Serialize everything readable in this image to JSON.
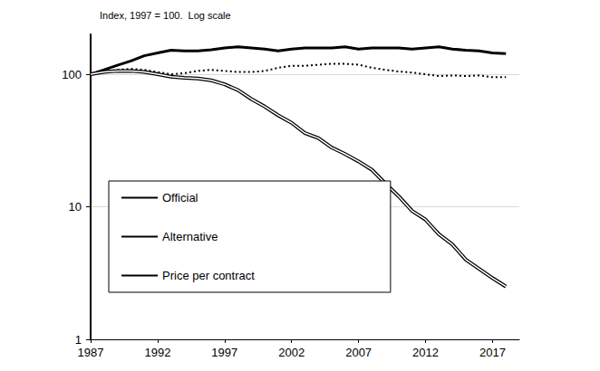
{
  "chart_data": {
    "type": "line",
    "ylabel": "Index, 1997 = 100.  Log scale",
    "log": "y",
    "grid": true,
    "legend": "left",
    "x": [
      1987,
      1988,
      1989,
      1990,
      1991,
      1992,
      1993,
      1994,
      1995,
      1996,
      1997,
      1998,
      1999,
      2000,
      2001,
      2002,
      2003,
      2004,
      2005,
      2006,
      2007,
      2008,
      2009,
      2010,
      2011,
      2012,
      2013,
      2014,
      2015,
      2016,
      2017,
      2018
    ],
    "xlim": [
      1987,
      2019
    ],
    "xticks": [
      1987,
      1992,
      1997,
      2002,
      2007,
      2012,
      2017
    ],
    "ylim": [
      1,
      200
    ],
    "yticks": [
      1,
      10,
      100
    ],
    "series": [
      {
        "name": "Official",
        "color": "#000000",
        "line_style": "solid",
        "values": [
          100,
          108,
          117,
          126,
          138,
          145,
          152,
          150,
          150,
          153,
          158,
          161,
          158,
          155,
          150,
          155,
          158,
          158,
          158,
          161,
          155,
          158,
          158,
          158,
          155,
          158,
          161,
          155,
          152,
          150,
          145,
          143
        ]
      },
      {
        "name": "Alternative",
        "color": "#000000",
        "line_style": "double",
        "values": [
          100,
          104,
          106,
          106,
          104,
          100,
          96,
          94,
          93,
          90,
          84,
          76,
          65,
          57,
          49,
          43,
          36,
          33,
          28,
          25,
          22,
          19,
          15,
          12,
          9.3,
          8,
          6.2,
          5.2,
          4,
          3.4,
          2.9,
          2.5
        ]
      },
      {
        "name": "Price per contract",
        "color": "#000000",
        "line_style": "dotted",
        "values": [
          100,
          104,
          108,
          110,
          108,
          104,
          100,
          102,
          106,
          108,
          106,
          104,
          104,
          106,
          112,
          116,
          116,
          118,
          120,
          120,
          118,
          112,
          108,
          105,
          103,
          100,
          97,
          98,
          97,
          98,
          95,
          95
        ]
      }
    ]
  }
}
